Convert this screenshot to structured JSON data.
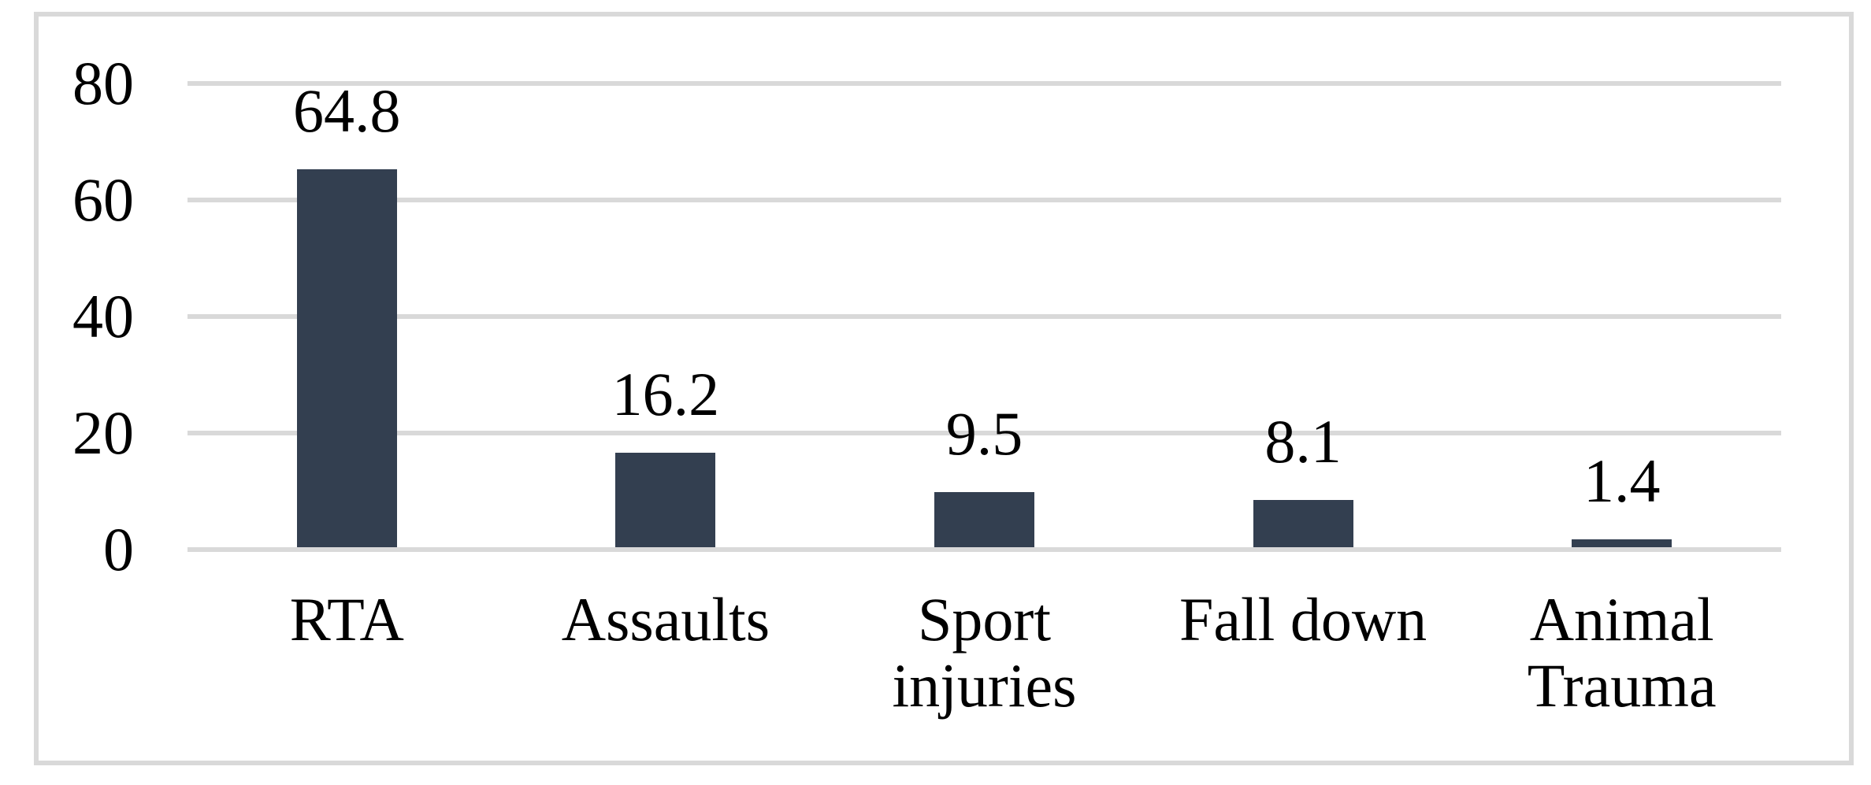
{
  "chart_data": {
    "type": "bar",
    "categories": [
      "RTA",
      "Assaults",
      "Sport injuries",
      "Fall down",
      "Animal Trauma"
    ],
    "values": [
      64.8,
      16.2,
      9.5,
      8.1,
      1.4
    ],
    "value_labels": [
      "64.8",
      "16.2",
      "9.5",
      "8.1",
      "1.4"
    ],
    "title": "",
    "xlabel": "",
    "ylabel": "",
    "ylim": [
      0,
      80
    ],
    "yticks": [
      0,
      20,
      40,
      60,
      80
    ],
    "ytick_labels": [
      "0",
      "20",
      "40",
      "60",
      "80"
    ],
    "grid": true,
    "legend": false,
    "bar_color": "#333F50",
    "gridline_color": "#D9D9D9",
    "frame_border_color": "#D9D9D9",
    "text_color": "#000000",
    "background_color": "#FFFFFF"
  }
}
